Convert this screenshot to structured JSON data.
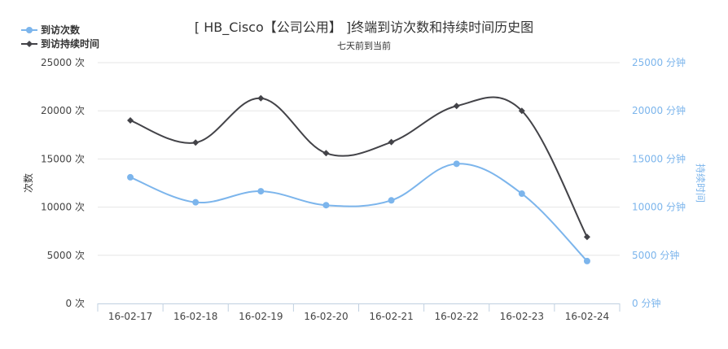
{
  "chart_data": {
    "type": "line",
    "title": "[ HB_Cisco【公司公用】 ]终端到访次数和持续时间历史图",
    "subtitle": "七天前到当前",
    "categories": [
      "16-02-17",
      "16-02-18",
      "16-02-19",
      "16-02-20",
      "16-02-21",
      "16-02-22",
      "16-02-23",
      "16-02-24"
    ],
    "y_left": {
      "label": "次数",
      "ticks": [
        "0 次",
        "5000 次",
        "10000 次",
        "15000 次",
        "20000 次",
        "25000 次"
      ],
      "range": [
        0,
        25000
      ]
    },
    "y_right": {
      "label": "持续时间",
      "ticks": [
        "0 分钟",
        "5000 分钟",
        "10000 分钟",
        "15000 分钟",
        "20000 分钟",
        "25000 分钟"
      ],
      "range": [
        0,
        25000
      ]
    },
    "series": [
      {
        "name": "到访次数",
        "axis": "left",
        "color": "#7cb5ec",
        "marker": "circle",
        "values": [
          13100,
          10500,
          11650,
          10200,
          10700,
          14500,
          11400,
          4400
        ]
      },
      {
        "name": "到访持续时间",
        "axis": "right",
        "color": "#434348",
        "marker": "diamond",
        "values": [
          19000,
          16700,
          21300,
          15600,
          16750,
          20500,
          20000,
          6900
        ]
      }
    ],
    "grid": true,
    "legend": "top-left"
  }
}
